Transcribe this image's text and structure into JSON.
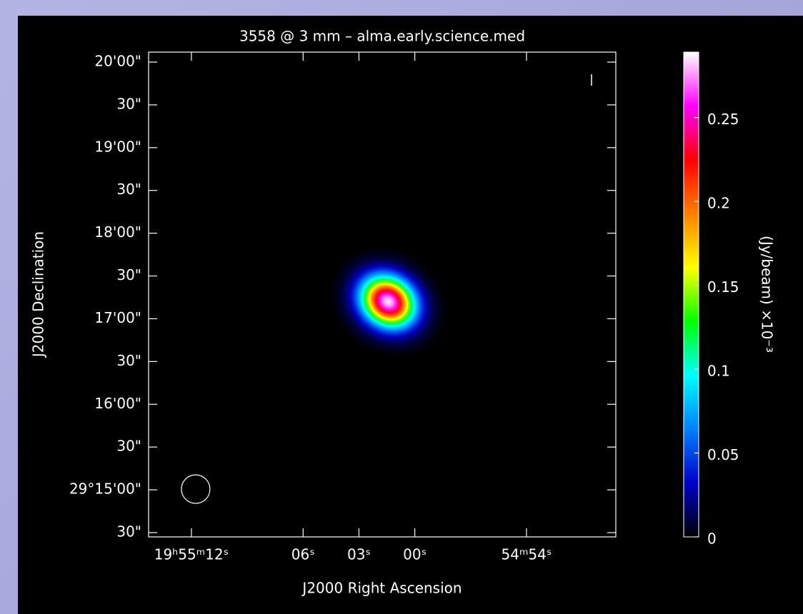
{
  "chart_data": {
    "type": "image",
    "title": "3558 @ 3 mm – alma.early.science.med",
    "xlabel": "J2000 Right Ascension",
    "ylabel": "J2000 Declination",
    "colorbar_label": "(Jy/beam) ×10⁻³",
    "xlim": [
      14.3,
      -10.8
    ],
    "xticks": [
      {
        "value": 12,
        "label": "19ʰ55ᵐ12ˢ"
      },
      {
        "value": 6,
        "label": "06ˢ"
      },
      {
        "value": 3,
        "label": "03ˢ"
      },
      {
        "value": 0,
        "label": "00ˢ"
      },
      {
        "value": -6,
        "label": "54ᵐ54ˢ"
      }
    ],
    "ylim": [
      867,
      1207
    ],
    "yticks": [
      {
        "value": 1200,
        "label": "20'00\""
      },
      {
        "value": 1170,
        "label": "30\""
      },
      {
        "value": 1140,
        "label": "19'00\""
      },
      {
        "value": 1110,
        "label": "30\""
      },
      {
        "value": 1080,
        "label": "18'00\""
      },
      {
        "value": 1050,
        "label": "30\""
      },
      {
        "value": 1020,
        "label": "17'00\""
      },
      {
        "value": 990,
        "label": "30\""
      },
      {
        "value": 960,
        "label": "16'00\""
      },
      {
        "value": 930,
        "label": "30\""
      },
      {
        "value": 900,
        "label": "29°15'00\""
      },
      {
        "value": 870,
        "label": "30\""
      }
    ],
    "clim": [
      0,
      0.289
    ],
    "cticks": [
      0,
      0.05,
      0.1,
      0.15,
      0.2,
      0.25
    ],
    "colormap": [
      "#000000",
      "#0000c8",
      "#0080ff",
      "#00ffff",
      "#00ff00",
      "#ffff00",
      "#ff8000",
      "#ff0000",
      "#ff00ff",
      "#ffffff"
    ],
    "source": {
      "ra": 1.43,
      "dec": 1032,
      "peak": 0.285,
      "fwhm": [
        31,
        26
      ]
    },
    "beam": {
      "ra": 11.77,
      "dec": 900.5,
      "radius": 10
    }
  }
}
